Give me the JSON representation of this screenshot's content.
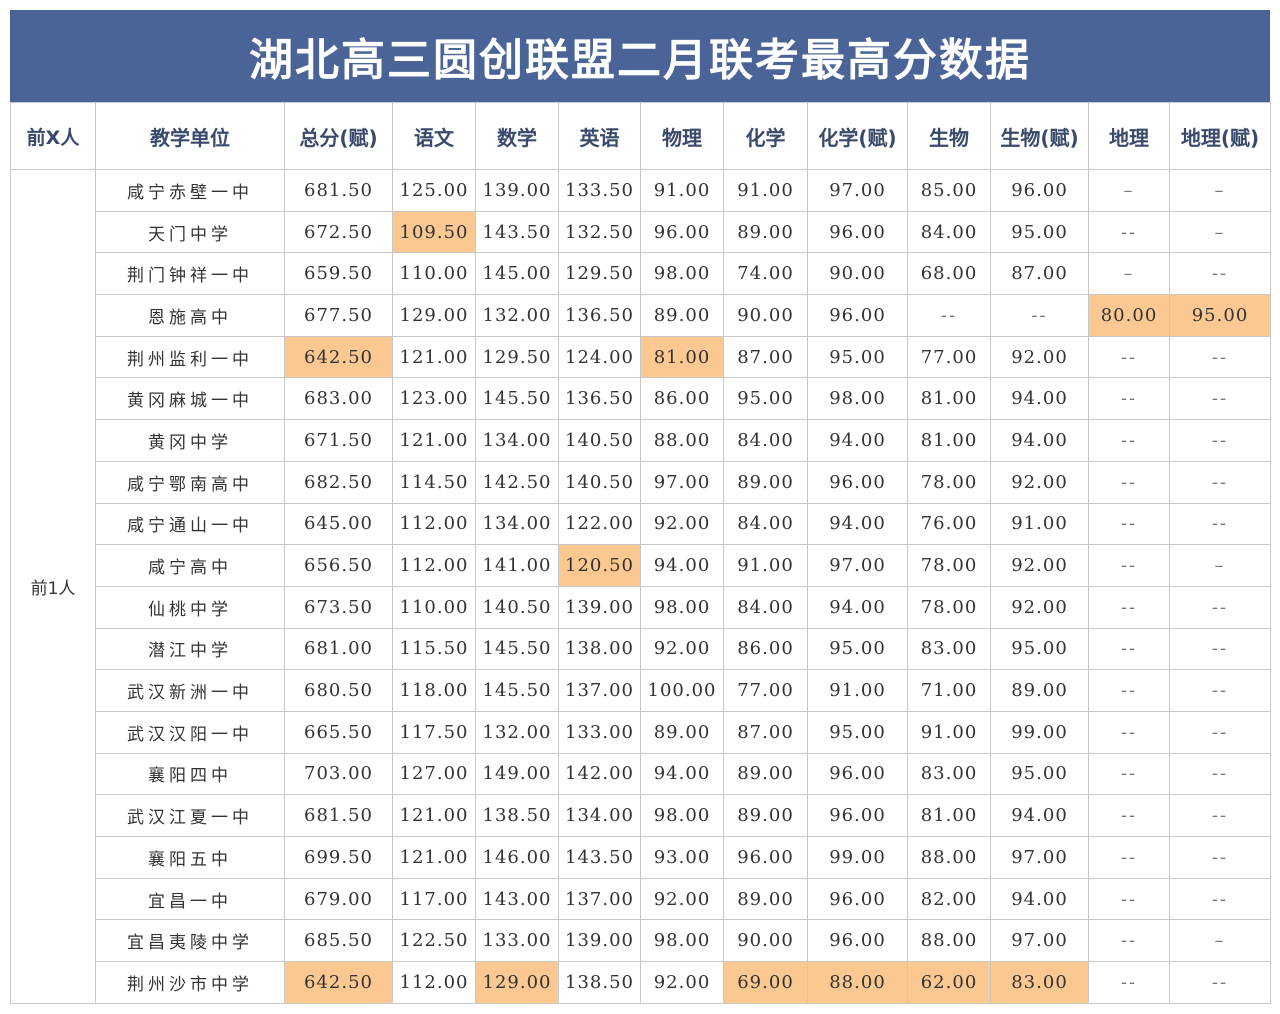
{
  "title": "湖北高三圆创联盟二月联考最高分数据",
  "colors": {
    "title_bg": "#4a6497",
    "highlight": "#fcc891",
    "header_text": "#3a4a6b",
    "grid_line": "#c8c8c8"
  },
  "headers": [
    "前X人",
    "教学单位",
    "总分(赋)",
    "语文",
    "数学",
    "英语",
    "物理",
    "化学",
    "化学(赋)",
    "生物",
    "生物(赋)",
    "地理",
    "地理(赋)"
  ],
  "group_label": "前1人",
  "rows": [
    {
      "school": "咸宁赤壁一中",
      "values": [
        "681.50",
        "125.00",
        "139.00",
        "133.50",
        "91.00",
        "91.00",
        "97.00",
        "85.00",
        "96.00",
        "–",
        "–"
      ],
      "highlight": []
    },
    {
      "school": "天门中学",
      "values": [
        "672.50",
        "109.50",
        "143.50",
        "132.50",
        "96.00",
        "89.00",
        "96.00",
        "84.00",
        "95.00",
        "--",
        "–"
      ],
      "highlight": [
        1
      ]
    },
    {
      "school": "荆门钟祥一中",
      "values": [
        "659.50",
        "110.00",
        "145.00",
        "129.50",
        "98.00",
        "74.00",
        "90.00",
        "68.00",
        "87.00",
        "–",
        "--"
      ],
      "highlight": []
    },
    {
      "school": "恩施高中",
      "values": [
        "677.50",
        "129.00",
        "132.00",
        "136.50",
        "89.00",
        "90.00",
        "96.00",
        "--",
        "--",
        "80.00",
        "95.00"
      ],
      "highlight": [
        9,
        10
      ]
    },
    {
      "school": "荆州监利一中",
      "values": [
        "642.50",
        "121.00",
        "129.50",
        "124.00",
        "81.00",
        "87.00",
        "95.00",
        "77.00",
        "92.00",
        "--",
        "--"
      ],
      "highlight": [
        0,
        4
      ]
    },
    {
      "school": "黄冈麻城一中",
      "values": [
        "683.00",
        "123.00",
        "145.50",
        "136.50",
        "86.00",
        "95.00",
        "98.00",
        "81.00",
        "94.00",
        "--",
        "--"
      ],
      "highlight": []
    },
    {
      "school": "黄冈中学",
      "values": [
        "671.50",
        "121.00",
        "134.00",
        "140.50",
        "88.00",
        "84.00",
        "94.00",
        "81.00",
        "94.00",
        "--",
        "--"
      ],
      "highlight": []
    },
    {
      "school": "咸宁鄂南高中",
      "values": [
        "682.50",
        "114.50",
        "142.50",
        "140.50",
        "97.00",
        "89.00",
        "96.00",
        "78.00",
        "92.00",
        "--",
        "--"
      ],
      "highlight": []
    },
    {
      "school": "咸宁通山一中",
      "values": [
        "645.00",
        "112.00",
        "134.00",
        "122.00",
        "92.00",
        "84.00",
        "94.00",
        "76.00",
        "91.00",
        "--",
        "--"
      ],
      "highlight": []
    },
    {
      "school": "咸宁高中",
      "values": [
        "656.50",
        "112.00",
        "141.00",
        "120.50",
        "94.00",
        "91.00",
        "97.00",
        "78.00",
        "92.00",
        "--",
        "–"
      ],
      "highlight": [
        3
      ]
    },
    {
      "school": "仙桃中学",
      "values": [
        "673.50",
        "110.00",
        "140.50",
        "139.00",
        "98.00",
        "84.00",
        "94.00",
        "78.00",
        "92.00",
        "--",
        "--"
      ],
      "highlight": []
    },
    {
      "school": "潜江中学",
      "values": [
        "681.00",
        "115.50",
        "145.50",
        "138.00",
        "92.00",
        "86.00",
        "95.00",
        "83.00",
        "95.00",
        "--",
        "--"
      ],
      "highlight": []
    },
    {
      "school": "武汉新洲一中",
      "values": [
        "680.50",
        "118.00",
        "145.50",
        "137.00",
        "100.00",
        "77.00",
        "91.00",
        "71.00",
        "89.00",
        "--",
        "--"
      ],
      "highlight": []
    },
    {
      "school": "武汉汉阳一中",
      "values": [
        "665.50",
        "117.50",
        "132.00",
        "133.00",
        "89.00",
        "87.00",
        "95.00",
        "91.00",
        "99.00",
        "--",
        "--"
      ],
      "highlight": []
    },
    {
      "school": "襄阳四中",
      "values": [
        "703.00",
        "127.00",
        "149.00",
        "142.00",
        "94.00",
        "89.00",
        "96.00",
        "83.00",
        "95.00",
        "--",
        "--"
      ],
      "highlight": []
    },
    {
      "school": "武汉江夏一中",
      "values": [
        "681.50",
        "121.00",
        "138.50",
        "134.00",
        "98.00",
        "89.00",
        "96.00",
        "81.00",
        "94.00",
        "--",
        "--"
      ],
      "highlight": []
    },
    {
      "school": "襄阳五中",
      "values": [
        "699.50",
        "121.00",
        "146.00",
        "143.50",
        "93.00",
        "96.00",
        "99.00",
        "88.00",
        "97.00",
        "--",
        "--"
      ],
      "highlight": []
    },
    {
      "school": "宜昌一中",
      "values": [
        "679.00",
        "117.00",
        "143.00",
        "137.00",
        "92.00",
        "89.00",
        "96.00",
        "82.00",
        "94.00",
        "--",
        "--"
      ],
      "highlight": []
    },
    {
      "school": "宜昌夷陵中学",
      "values": [
        "685.50",
        "122.50",
        "133.00",
        "139.00",
        "98.00",
        "90.00",
        "96.00",
        "88.00",
        "97.00",
        "--",
        "–"
      ],
      "highlight": []
    },
    {
      "school": "荆州沙市中学",
      "values": [
        "642.50",
        "112.00",
        "129.00",
        "138.50",
        "92.00",
        "69.00",
        "88.00",
        "62.00",
        "83.00",
        "--",
        "--"
      ],
      "highlight": [
        0,
        2,
        5,
        6,
        7,
        8
      ]
    }
  ]
}
